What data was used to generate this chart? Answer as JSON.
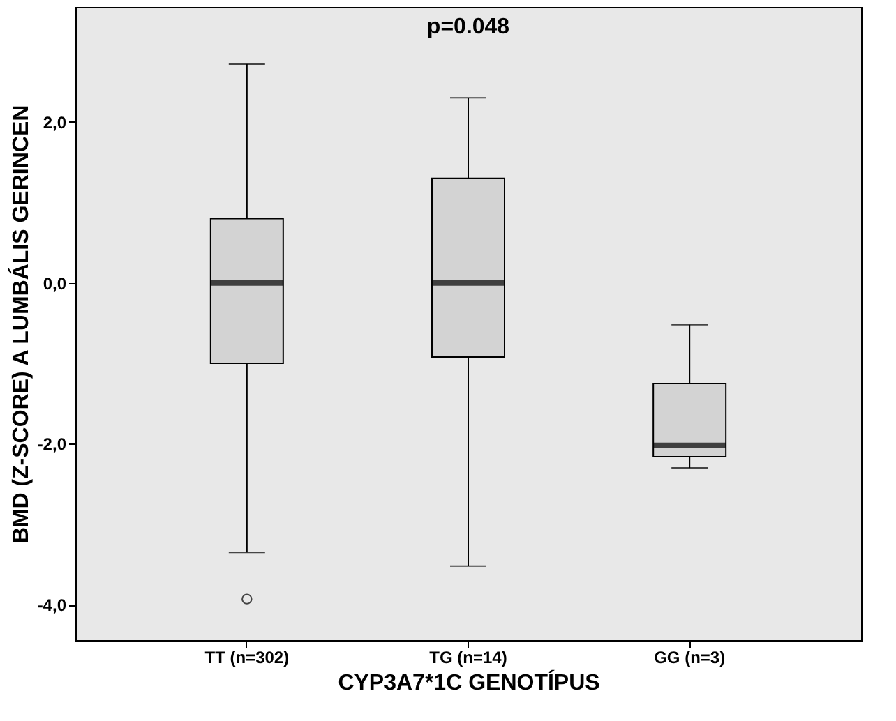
{
  "chart_data": {
    "type": "box",
    "xlabel": "CYP3A7*1C GENOTÍPUS",
    "ylabel": "BMD (Z-SCORE) A LUMBÁLIS GERINCEN",
    "categories": [
      "TT (n=302)",
      "TG (n=14)",
      "GG (n=3)"
    ],
    "boxes": [
      {
        "low": -3.35,
        "q1": -1.0,
        "median": 0.0,
        "q3": 0.8,
        "high": 2.72,
        "outliers": [
          -3.93
        ]
      },
      {
        "low": -3.52,
        "q1": -0.92,
        "median": 0.0,
        "q3": 1.3,
        "high": 2.3
      },
      {
        "low": -2.3,
        "q1": -2.16,
        "median": -2.02,
        "q3": -1.25,
        "high": -0.52
      }
    ],
    "color": "#d3d3d3",
    "ylim": [
      -4.44,
      3.43
    ],
    "yticks": [
      {
        "value": -4,
        "label": "-4,0"
      },
      {
        "value": -2,
        "label": "-2,0"
      },
      {
        "value": 0,
        "label": "0,0"
      },
      {
        "value": 2,
        "label": "2,0"
      }
    ],
    "annotations": [
      "p=0.048"
    ],
    "grid": false
  }
}
